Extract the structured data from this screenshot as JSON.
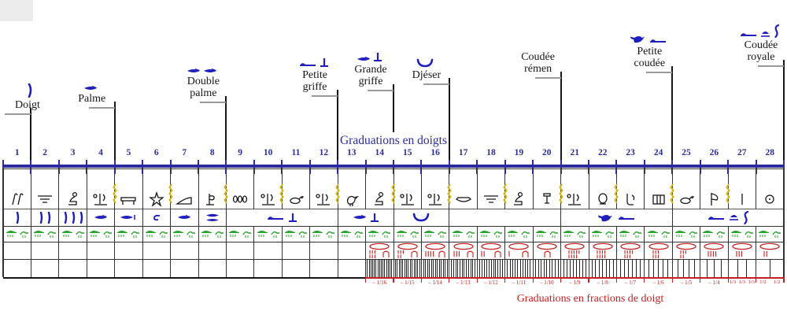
{
  "colors": {
    "navy": "#2b2b9e",
    "blue_glyph": "#1f1fbe",
    "green_glyph": "#28a42c",
    "red": "#c61f1f",
    "yellow": "#d8b411",
    "gray_leader": "#999999",
    "ink": "#161616",
    "border": "#333333"
  },
  "captions": {
    "top": "Graduations en doigts",
    "bottom": "Graduations en fractions de doigt"
  },
  "ruler": {
    "digits": [
      1,
      2,
      3,
      4,
      5,
      6,
      7,
      8,
      9,
      10,
      11,
      12,
      13,
      14,
      15,
      16,
      17,
      18,
      19,
      20,
      21,
      22,
      23,
      24,
      25,
      26,
      27,
      28
    ]
  },
  "units": [
    {
      "key": "doigt",
      "label_lines": [
        "Doigt"
      ],
      "digit": 1,
      "glyphs": [
        "finger"
      ]
    },
    {
      "key": "palme",
      "label_lines": [
        "Palme"
      ],
      "digit": 4,
      "glyphs": [
        "palm"
      ]
    },
    {
      "key": "double-palme",
      "label_lines": [
        "Double",
        "palme"
      ],
      "digit": 8,
      "glyphs": [
        "palm",
        "palm"
      ]
    },
    {
      "key": "petite-griffe",
      "label_lines": [
        "Petite",
        "griffe"
      ],
      "digit": 12,
      "glyphs": [
        "arm",
        "tee"
      ]
    },
    {
      "key": "grande-griffe",
      "label_lines": [
        "Grande",
        "griffe"
      ],
      "digit": 14,
      "glyphs": [
        "palm",
        "tee"
      ],
      "short_line": true
    },
    {
      "key": "djeser",
      "label_lines": [
        "Djéser"
      ],
      "digit": 16,
      "glyphs": [
        "cup"
      ]
    },
    {
      "key": "coudee-remen",
      "label_lines": [
        "Coudée",
        "rémen"
      ],
      "digit": 20,
      "glyphs": []
    },
    {
      "key": "petite-coudee",
      "label_lines": [
        "Petite",
        "coudée"
      ],
      "digit": 24,
      "glyphs": [
        "bird",
        "arm"
      ]
    },
    {
      "key": "coudee-royale",
      "label_lines": [
        "Coudée",
        "royale"
      ],
      "digit": 28,
      "glyphs": [
        "arm",
        "loaf",
        "hook"
      ]
    }
  ],
  "table": {
    "deity_row": [
      "reeds",
      "bars",
      "seated",
      "group",
      "bed",
      "star",
      "slope",
      "cloth",
      "jars",
      "group",
      "duck",
      "group",
      "bird-b",
      "seated",
      "group",
      "group",
      "boat",
      "bars",
      "seated",
      "vessel",
      "group",
      "pot",
      "arm-leg",
      "stool",
      "duck",
      "sail",
      "stroke-b",
      "circle"
    ],
    "unit_sign_row": [
      {
        "span": [
          1,
          1
        ],
        "glyphs": [
          "stroke"
        ]
      },
      {
        "span": [
          2,
          2
        ],
        "glyphs": [
          "stroke",
          "stroke"
        ]
      },
      {
        "span": [
          3,
          3
        ],
        "glyphs": [
          "stroke",
          "stroke",
          "stroke"
        ]
      },
      {
        "span": [
          4,
          4
        ],
        "glyphs": [
          "palm"
        ]
      },
      {
        "span": [
          5,
          5
        ],
        "glyphs": [
          "palm-tick"
        ]
      },
      {
        "span": [
          6,
          6
        ],
        "glyphs": [
          "hook-small"
        ]
      },
      {
        "span": [
          7,
          7
        ],
        "glyphs": [
          "palm"
        ]
      },
      {
        "span": [
          8,
          8
        ],
        "glyphs": [
          "palm-2"
        ]
      },
      {
        "span": [
          9,
          12
        ],
        "glyphs": [
          "arm",
          "tee"
        ]
      },
      {
        "span": [
          13,
          14
        ],
        "glyphs": [
          "palm",
          "tee"
        ]
      },
      {
        "span": [
          15,
          16
        ],
        "glyphs": [
          "cup"
        ]
      },
      {
        "span": [
          17,
          20
        ],
        "glyphs": []
      },
      {
        "span": [
          21,
          24
        ],
        "glyphs": [
          "bird",
          "arm"
        ]
      },
      {
        "span": [
          25,
          28
        ],
        "glyphs": [
          "arm",
          "loaf",
          "hook"
        ]
      }
    ],
    "green_row": [
      "croc-arm",
      "croc-arm",
      "croc-arm",
      "croc-arm",
      "croc-arm",
      "croc-arm",
      "croc-arm",
      "croc-arm",
      "croc-arm",
      "croc-arm",
      "croc-arm",
      "croc-arm",
      "croc-arm",
      "croc-arm",
      "croc-arm",
      "croc-arm",
      "croc-arm",
      "croc-arm",
      "croc-arm",
      "croc-arm",
      "croc-arm",
      "croc-arm",
      "croc-arm",
      "croc-arm",
      "croc-arm",
      "croc-arm",
      "croc-arm",
      "croc-arm"
    ],
    "yellow_marks_after_digits": [
      4,
      6,
      8,
      10,
      12,
      14,
      16,
      18,
      20,
      22,
      24,
      26
    ],
    "fractions": [
      {
        "digit": 14,
        "parts": 16,
        "labels": [
          "– 1/16"
        ]
      },
      {
        "digit": 15,
        "parts": 15,
        "labels": [
          "– 1/15"
        ]
      },
      {
        "digit": 16,
        "parts": 14,
        "labels": [
          "– 1/14"
        ]
      },
      {
        "digit": 17,
        "parts": 13,
        "labels": [
          "– 1/13"
        ]
      },
      {
        "digit": 18,
        "parts": 12,
        "labels": [
          "– 1/12"
        ]
      },
      {
        "digit": 19,
        "parts": 11,
        "labels": [
          "– 1/11"
        ]
      },
      {
        "digit": 20,
        "parts": 10,
        "labels": [
          "– 1/10"
        ]
      },
      {
        "digit": 21,
        "parts": 9,
        "labels": [
          "– 1/9"
        ]
      },
      {
        "digit": 22,
        "parts": 8,
        "labels": [
          "– 1/8"
        ]
      },
      {
        "digit": 23,
        "parts": 7,
        "labels": [
          "– 1/7"
        ]
      },
      {
        "digit": 24,
        "parts": 6,
        "labels": [
          "– 1/6"
        ]
      },
      {
        "digit": 25,
        "parts": 5,
        "labels": [
          "– 1/5"
        ]
      },
      {
        "digit": 26,
        "parts": 4,
        "labels": [
          "– 1/4"
        ]
      },
      {
        "digit": 27,
        "parts": 3,
        "labels": [
          "1/3",
          "1/3",
          "1/3"
        ]
      },
      {
        "digit": 28,
        "parts": 2,
        "labels": [
          "1/2",
          "1/2"
        ]
      }
    ]
  }
}
